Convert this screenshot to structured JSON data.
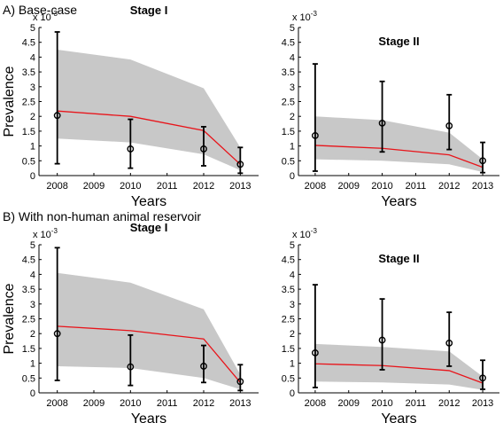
{
  "figure": {
    "section_a_label": "A) Base-case",
    "section_b_label": "B) With non-human animal reservoir"
  },
  "chart_data": [
    {
      "id": "a-stage-1",
      "type": "line",
      "title": "Stage I",
      "xlabel": "Years",
      "ylabel": "Prevalence",
      "exponent_label": "x 10",
      "exponent_power": "-3",
      "xlim": [
        2007.5,
        2013.5
      ],
      "ylim": [
        0,
        5
      ],
      "x_ticks": [
        2008,
        2009,
        2010,
        2011,
        2012,
        2013
      ],
      "y_ticks": [
        0,
        0.5,
        1,
        1.5,
        2,
        2.5,
        3,
        3.5,
        4,
        4.5,
        5
      ],
      "y_tick_labels": [
        "0",
        "0.5",
        "1",
        "1.5",
        "2",
        "2.5",
        "3",
        "3.5",
        "4",
        "4.5",
        "5"
      ],
      "band_x": [
        2008,
        2010,
        2012,
        2013
      ],
      "band_upper": [
        4.25,
        3.92,
        2.95,
        0.95
      ],
      "band_lower": [
        1.25,
        1.12,
        0.72,
        0.18
      ],
      "model_line": {
        "color": "#e8141a",
        "x": [
          2008,
          2010,
          2012,
          2013
        ],
        "y": [
          2.18,
          2.0,
          1.52,
          0.38
        ]
      },
      "observed": {
        "x": [
          2008,
          2010,
          2012,
          2013
        ],
        "y": [
          2.03,
          0.9,
          0.9,
          0.38
        ],
        "lower": [
          0.4,
          0.25,
          0.33,
          0.08
        ],
        "upper": [
          4.85,
          1.9,
          1.65,
          0.95
        ]
      },
      "band_color": "#c8c8c8"
    },
    {
      "id": "a-stage-2",
      "type": "line",
      "title": "Stage II",
      "xlabel": "Years",
      "ylabel": "",
      "exponent_label": "x 10",
      "exponent_power": "-3",
      "xlim": [
        2007.5,
        2013.5
      ],
      "ylim": [
        0,
        5
      ],
      "x_ticks": [
        2008,
        2009,
        2010,
        2011,
        2012,
        2013
      ],
      "y_ticks": [
        0,
        0.5,
        1,
        1.5,
        2,
        2.5,
        3,
        3.5,
        4,
        4.5,
        5
      ],
      "y_tick_labels": [
        "0",
        "0.5",
        "1",
        "1.5",
        "2",
        "2.5",
        "3",
        "3.5",
        "4",
        "4.5",
        "5"
      ],
      "band_x": [
        2008,
        2010,
        2012,
        2013
      ],
      "band_upper": [
        2.0,
        1.87,
        1.45,
        0.55
      ],
      "band_lower": [
        0.55,
        0.5,
        0.38,
        0.12
      ],
      "model_line": {
        "color": "#e8141a",
        "x": [
          2008,
          2010,
          2012,
          2013
        ],
        "y": [
          1.02,
          0.92,
          0.7,
          0.28
        ]
      },
      "observed": {
        "x": [
          2008,
          2010,
          2012,
          2013
        ],
        "y": [
          1.35,
          1.77,
          1.68,
          0.5
        ],
        "lower": [
          0.15,
          0.8,
          0.88,
          0.1
        ],
        "upper": [
          3.77,
          3.18,
          2.73,
          1.12
        ]
      },
      "band_color": "#c8c8c8"
    },
    {
      "id": "b-stage-1",
      "type": "line",
      "title": "Stage I",
      "xlabel": "Years",
      "ylabel": "Prevalence",
      "exponent_label": "x 10",
      "exponent_power": "-3",
      "xlim": [
        2007.5,
        2013.5
      ],
      "ylim": [
        0,
        5
      ],
      "x_ticks": [
        2008,
        2009,
        2010,
        2011,
        2012,
        2013
      ],
      "y_ticks": [
        0,
        0.5,
        1,
        1.5,
        2,
        2.5,
        3,
        3.5,
        4,
        4.5,
        5
      ],
      "y_tick_labels": [
        "0",
        "0.5",
        "1",
        "1.5",
        "2",
        "2.5",
        "3",
        "3.5",
        "4",
        "4.5",
        "5"
      ],
      "band_x": [
        2008,
        2010,
        2012,
        2013
      ],
      "band_upper": [
        4.05,
        3.72,
        2.82,
        0.62
      ],
      "band_lower": [
        0.9,
        0.84,
        0.5,
        0.12
      ],
      "model_line": {
        "color": "#e8141a",
        "x": [
          2008,
          2010,
          2012,
          2013
        ],
        "y": [
          2.25,
          2.1,
          1.82,
          0.35
        ]
      },
      "observed": {
        "x": [
          2008,
          2010,
          2012,
          2013
        ],
        "y": [
          2.0,
          0.88,
          0.9,
          0.38
        ],
        "lower": [
          0.42,
          0.25,
          0.35,
          0.08
        ],
        "upper": [
          4.9,
          1.95,
          1.6,
          0.95
        ]
      },
      "band_color": "#c8c8c8"
    },
    {
      "id": "b-stage-2",
      "type": "line",
      "title": "Stage II",
      "xlabel": "Years",
      "ylabel": "",
      "exponent_label": "x 10",
      "exponent_power": "-3",
      "xlim": [
        2007.5,
        2013.5
      ],
      "ylim": [
        0,
        5
      ],
      "x_ticks": [
        2008,
        2009,
        2010,
        2011,
        2012,
        2013
      ],
      "y_ticks": [
        0,
        0.5,
        1,
        1.5,
        2,
        2.5,
        3,
        3.5,
        4,
        4.5,
        5
      ],
      "y_tick_labels": [
        "0",
        "0.5",
        "1",
        "1.5",
        "2",
        "2.5",
        "3",
        "3.5",
        "4",
        "4.5",
        "5"
      ],
      "band_x": [
        2008,
        2010,
        2012,
        2013
      ],
      "band_upper": [
        1.65,
        1.55,
        1.4,
        0.55
      ],
      "band_lower": [
        0.38,
        0.35,
        0.28,
        0.1
      ],
      "model_line": {
        "color": "#e8141a",
        "x": [
          2008,
          2010,
          2012,
          2013
        ],
        "y": [
          0.98,
          0.92,
          0.75,
          0.33
        ]
      },
      "observed": {
        "x": [
          2008,
          2010,
          2012,
          2013
        ],
        "y": [
          1.35,
          1.78,
          1.68,
          0.5
        ],
        "lower": [
          0.18,
          0.78,
          0.9,
          0.12
        ],
        "upper": [
          3.65,
          3.17,
          2.72,
          1.1
        ]
      },
      "band_color": "#c8c8c8"
    }
  ]
}
